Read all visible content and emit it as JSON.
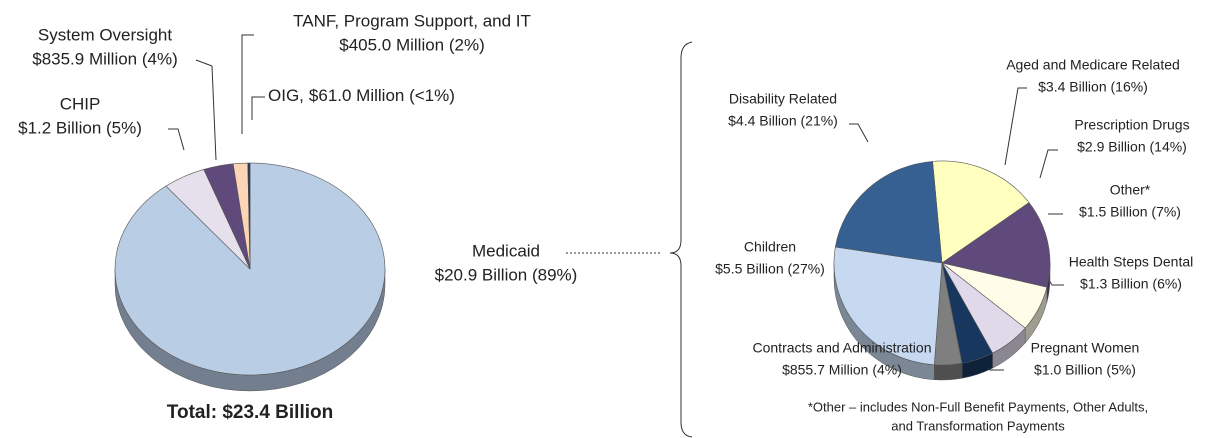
{
  "chart_data": [
    {
      "type": "pie",
      "categories": [
        "Medicaid",
        "CHIP",
        "System Oversight",
        "TANF, Program Support, and IT",
        "OIG,"
      ],
      "values": [
        20900000000,
        1200000000,
        835900000,
        405000000,
        61000000
      ],
      "value_labels": [
        "$20.9 Billion (89%)",
        "$1.2 Billion (5%)",
        "$835.9 Million (4%)",
        "$405.0 Million (2%)",
        "$61.0 Million (<1%)"
      ],
      "colors": [
        "#b9cde5",
        "#e6e0ec",
        "#5f4a7b",
        "#fbd5b5",
        "#1f3050"
      ],
      "annotation": "Total: $23.4 Billion"
    },
    {
      "type": "pie",
      "categories": [
        "Aged and Medicare Related",
        "Prescription Drugs",
        "Other*",
        "Health Steps Dental",
        "Pregnant Women",
        "Contracts and Administration",
        "Children",
        "Disability Related"
      ],
      "values": [
        3400000000,
        2900000000,
        1500000000,
        1300000000,
        1000000000,
        855700000,
        5500000000,
        4400000000
      ],
      "value_labels": [
        "$3.4 Billion (16%)",
        "$2.9 Billion (14%)",
        "$1.5 Billion (7%)",
        "$1.3 Billion (6%)",
        "$1.0 Billion (5%)",
        "$855.7 Million (4%)",
        "$5.5 Billion (27%)",
        "$4.4 Billion (21%)"
      ],
      "colors": [
        "#ffffc0",
        "#604a7b",
        "#fffde8",
        "#e0d9ea",
        "#17375e",
        "#7f7f7f",
        "#c6d9f1",
        "#376092"
      ],
      "footnote": [
        "*Other –  includes Non-Full Benefit Payments, Other Adults,",
        "and Transformation Payments"
      ]
    }
  ]
}
